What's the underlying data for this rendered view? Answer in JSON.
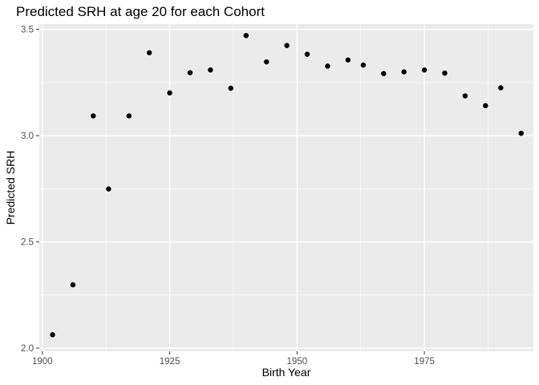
{
  "chart_data": {
    "type": "scatter",
    "title": "Predicted SRH at age 20 for each Cohort",
    "xlabel": "Birth Year",
    "ylabel": "Predicted SRH",
    "xlim": [
      1899.4,
      1996.4
    ],
    "ylim": [
      1.985,
      3.525
    ],
    "x_ticks": [
      1900,
      1925,
      1950,
      1975
    ],
    "x_tick_labels": [
      "1900",
      "1925",
      "1950",
      "1975"
    ],
    "x_minor_ticks": [
      1912.5,
      1937.5,
      1962.5,
      1987.5
    ],
    "y_ticks": [
      2.0,
      2.5,
      3.0,
      3.5
    ],
    "y_tick_labels": [
      "2.0",
      "2.5",
      "3.0",
      "3.5"
    ],
    "y_minor_ticks": [
      2.25,
      2.75,
      3.25
    ],
    "grid": true,
    "legend": "none",
    "colors": {
      "panel": "#ebebeb",
      "grid": "#ffffff",
      "point": "#000000",
      "tick": "#333333"
    },
    "points": [
      {
        "x": 1902,
        "y": 2.063
      },
      {
        "x": 1906,
        "y": 2.298
      },
      {
        "x": 1910,
        "y": 3.093
      },
      {
        "x": 1913,
        "y": 2.749
      },
      {
        "x": 1917,
        "y": 3.093
      },
      {
        "x": 1921,
        "y": 3.39
      },
      {
        "x": 1925,
        "y": 3.201
      },
      {
        "x": 1929,
        "y": 3.296
      },
      {
        "x": 1933,
        "y": 3.309
      },
      {
        "x": 1937,
        "y": 3.223
      },
      {
        "x": 1940,
        "y": 3.471
      },
      {
        "x": 1944,
        "y": 3.347
      },
      {
        "x": 1948,
        "y": 3.424
      },
      {
        "x": 1952,
        "y": 3.383
      },
      {
        "x": 1956,
        "y": 3.327
      },
      {
        "x": 1960,
        "y": 3.356
      },
      {
        "x": 1963,
        "y": 3.332
      },
      {
        "x": 1967,
        "y": 3.292
      },
      {
        "x": 1971,
        "y": 3.3
      },
      {
        "x": 1975,
        "y": 3.309
      },
      {
        "x": 1979,
        "y": 3.294
      },
      {
        "x": 1983,
        "y": 3.187
      },
      {
        "x": 1987,
        "y": 3.141
      },
      {
        "x": 1990,
        "y": 3.225
      },
      {
        "x": 1994,
        "y": 3.011
      }
    ]
  }
}
